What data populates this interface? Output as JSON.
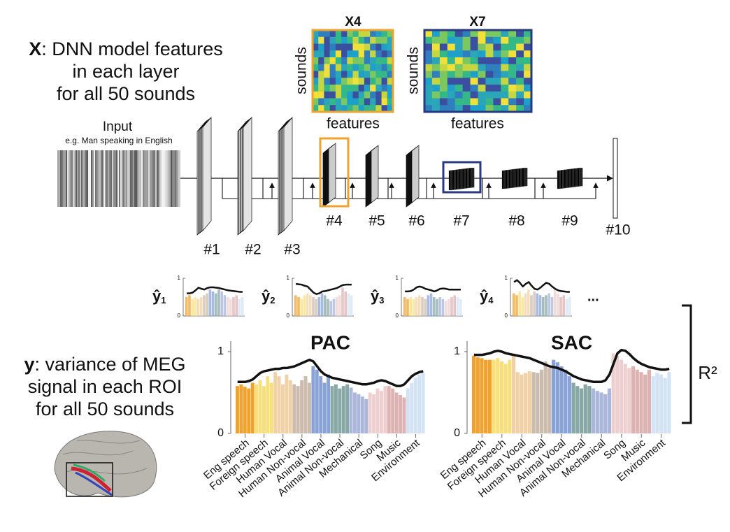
{
  "figure": {
    "dnn_text": {
      "symbol": "X",
      "rest": ": DNN model features",
      "line2": "in each layer",
      "line3": "for all 50 sounds"
    },
    "input": {
      "title": "Input",
      "example": "e.g. Man speaking in English"
    },
    "feature_maps": [
      {
        "name": "X4",
        "ylabel": "sounds",
        "xlabel": "features"
      },
      {
        "name": "X7",
        "ylabel": "sounds",
        "xlabel": "features"
      }
    ],
    "layers": [
      "#1",
      "#2",
      "#3",
      "#4",
      "#5",
      "#6",
      "#7",
      "#8",
      "#9",
      "#10"
    ],
    "meg_text": {
      "symbol": "y",
      "rest": ": variance of MEG",
      "line2": "signal in each ROI",
      "line3": "for all 50 sounds"
    },
    "r2_label": "R²",
    "ellipsis": "..."
  },
  "predictions": [
    {
      "symbol": "ŷ",
      "index": "1",
      "ylim": [
        0,
        1
      ],
      "yticks": [
        0,
        1
      ],
      "values": [
        0.5,
        0.55,
        0.45,
        0.5,
        0.45,
        0.5,
        0.55,
        0.6,
        0.7,
        0.65,
        0.6,
        0.7,
        0.65,
        0.55,
        0.5,
        0.45,
        0.5,
        0.55,
        0.45,
        0.5
      ],
      "curve": [
        0.6,
        0.6,
        0.62,
        0.68,
        0.75,
        0.72,
        0.7,
        0.74,
        0.76,
        0.76,
        0.75,
        0.74,
        0.72,
        0.7,
        0.68,
        0.67,
        0.66,
        0.65,
        0.64,
        0.64
      ]
    },
    {
      "symbol": "ŷ",
      "index": "2",
      "ylim": [
        0,
        1
      ],
      "yticks": [
        0,
        1
      ],
      "values": [
        0.55,
        0.5,
        0.45,
        0.55,
        0.6,
        0.55,
        0.5,
        0.45,
        0.5,
        0.6,
        0.55,
        0.45,
        0.4,
        0.45,
        0.5,
        0.55,
        0.75,
        0.65,
        0.6,
        0.55
      ],
      "curve": [
        0.85,
        0.84,
        0.83,
        0.8,
        0.78,
        0.7,
        0.62,
        0.58,
        0.6,
        0.65,
        0.66,
        0.68,
        0.7,
        0.72,
        0.74,
        0.78,
        0.82,
        0.83,
        0.83,
        0.83
      ]
    },
    {
      "symbol": "ŷ",
      "index": "3",
      "ylim": [
        0,
        1
      ],
      "yticks": [
        0,
        1
      ],
      "values": [
        0.5,
        0.45,
        0.5,
        0.45,
        0.5,
        0.55,
        0.5,
        0.45,
        0.55,
        0.6,
        0.5,
        0.45,
        0.5,
        0.45,
        0.4,
        0.45,
        0.5,
        0.55,
        0.5,
        0.45
      ],
      "curve": [
        0.65,
        0.65,
        0.66,
        0.7,
        0.76,
        0.78,
        0.76,
        0.72,
        0.7,
        0.68,
        0.65,
        0.68,
        0.72,
        0.73,
        0.72,
        0.7,
        0.7,
        0.7,
        0.7,
        0.7
      ]
    },
    {
      "symbol": "ŷ",
      "index": "4",
      "ylim": [
        0,
        1
      ],
      "yticks": [
        0,
        1
      ],
      "values": [
        0.6,
        0.55,
        0.65,
        0.5,
        0.6,
        0.7,
        0.55,
        0.65,
        0.6,
        0.55,
        0.5,
        0.55,
        0.6,
        0.5,
        0.7,
        0.6,
        0.5,
        0.55,
        0.45,
        0.5
      ],
      "curve": [
        0.9,
        0.95,
        0.88,
        0.78,
        0.85,
        0.9,
        0.8,
        0.72,
        0.7,
        0.75,
        0.82,
        0.88,
        0.85,
        0.78,
        0.72,
        0.68,
        0.66,
        0.65,
        0.64,
        0.64
      ]
    }
  ],
  "chart_data": [
    {
      "type": "bar",
      "title": "PAC",
      "ylim": [
        0,
        1
      ],
      "yticks": [
        0,
        1
      ],
      "curve_color": "#111",
      "groups": [
        {
          "name": "Eng speech",
          "color": "#f0a22e",
          "values": [
            0.58,
            0.6,
            0.57,
            0.55,
            0.62
          ]
        },
        {
          "name": "Foreign speech",
          "color": "#f7e07c",
          "values": [
            0.6,
            0.65,
            0.58,
            0.7,
            0.62
          ]
        },
        {
          "name": "Human Vocal",
          "color": "#f1d2a8",
          "values": [
            0.75,
            0.7,
            0.6,
            0.72,
            0.65
          ]
        },
        {
          "name": "Human Non-vocal",
          "color": "#cbbcae",
          "values": [
            0.6,
            0.58,
            0.65,
            0.7,
            0.62
          ]
        },
        {
          "name": "Animal Vocal",
          "color": "#8aa3d6",
          "values": [
            0.82,
            0.78,
            0.7,
            0.62,
            0.72
          ]
        },
        {
          "name": "Animal Non-vocal",
          "color": "#88a8a6",
          "values": [
            0.58,
            0.6,
            0.55,
            0.58,
            0.6
          ]
        },
        {
          "name": "Mechanical",
          "color": "#aab6da",
          "values": [
            0.56,
            0.5,
            0.48,
            0.45,
            0.42
          ]
        },
        {
          "name": "Song",
          "color": "#eecfcf",
          "values": [
            0.5,
            0.48,
            0.55,
            0.52,
            0.58
          ]
        },
        {
          "name": "Music",
          "color": "#dcb2b2",
          "values": [
            0.58,
            0.55,
            0.5,
            0.47,
            0.44
          ]
        },
        {
          "name": "Environment",
          "color": "#d3e3f3",
          "values": [
            0.55,
            0.62,
            0.68,
            0.72,
            0.74
          ]
        }
      ],
      "curve": [
        0.63,
        0.63,
        0.63,
        0.64,
        0.66,
        0.7,
        0.74,
        0.76,
        0.77,
        0.78,
        0.79,
        0.79,
        0.8,
        0.8,
        0.81,
        0.82,
        0.84,
        0.86,
        0.88,
        0.9,
        0.88,
        0.82,
        0.76,
        0.72,
        0.7,
        0.68,
        0.67,
        0.66,
        0.65,
        0.64,
        0.63,
        0.62,
        0.61,
        0.6,
        0.6,
        0.61,
        0.62,
        0.64,
        0.65,
        0.64,
        0.62,
        0.6,
        0.58,
        0.58,
        0.6,
        0.65,
        0.7,
        0.73,
        0.75,
        0.76
      ]
    },
    {
      "type": "bar",
      "title": "SAC",
      "ylim": [
        0,
        1
      ],
      "yticks": [
        0,
        1
      ],
      "curve_color": "#111",
      "groups": [
        {
          "name": "Eng speech",
          "color": "#f0a22e",
          "values": [
            0.95,
            0.93,
            0.92,
            0.9,
            0.9
          ]
        },
        {
          "name": "Foreign speech",
          "color": "#f7e07c",
          "values": [
            0.9,
            0.92,
            0.88,
            0.85,
            0.9
          ]
        },
        {
          "name": "Human Vocal",
          "color": "#f1d2a8",
          "values": [
            0.95,
            0.75,
            0.72,
            0.74,
            0.76
          ]
        },
        {
          "name": "Human Non-vocal",
          "color": "#cbbcae",
          "values": [
            0.75,
            0.74,
            0.78,
            0.88,
            0.8
          ]
        },
        {
          "name": "Animal Vocal",
          "color": "#8aa3d6",
          "values": [
            0.9,
            0.87,
            0.82,
            0.78,
            0.7
          ]
        },
        {
          "name": "Animal Non-vocal",
          "color": "#88a8a6",
          "values": [
            0.62,
            0.58,
            0.55,
            0.6,
            0.58
          ]
        },
        {
          "name": "Mechanical",
          "color": "#aab6da",
          "values": [
            0.55,
            0.52,
            0.5,
            0.48,
            0.55
          ]
        },
        {
          "name": "Song",
          "color": "#eecfcf",
          "values": [
            0.98,
            0.95,
            0.9,
            0.85,
            0.8
          ]
        },
        {
          "name": "Music",
          "color": "#dcb2b2",
          "values": [
            0.82,
            0.78,
            0.75,
            0.72,
            0.78
          ]
        },
        {
          "name": "Environment",
          "color": "#d3e3f3",
          "values": [
            0.7,
            0.74,
            0.72,
            0.68,
            0.75
          ]
        }
      ],
      "curve": [
        0.96,
        0.96,
        0.96,
        0.97,
        0.98,
        1.0,
        1.01,
        1.0,
        0.98,
        0.97,
        0.96,
        0.95,
        0.94,
        0.93,
        0.92,
        0.9,
        0.88,
        0.86,
        0.84,
        0.82,
        0.81,
        0.8,
        0.78,
        0.76,
        0.73,
        0.7,
        0.68,
        0.66,
        0.65,
        0.64,
        0.63,
        0.63,
        0.63,
        0.65,
        0.72,
        0.85,
        0.98,
        1.02,
        1.01,
        0.97,
        0.92,
        0.88,
        0.85,
        0.83,
        0.81,
        0.8,
        0.79,
        0.78,
        0.78,
        0.79
      ]
    }
  ]
}
